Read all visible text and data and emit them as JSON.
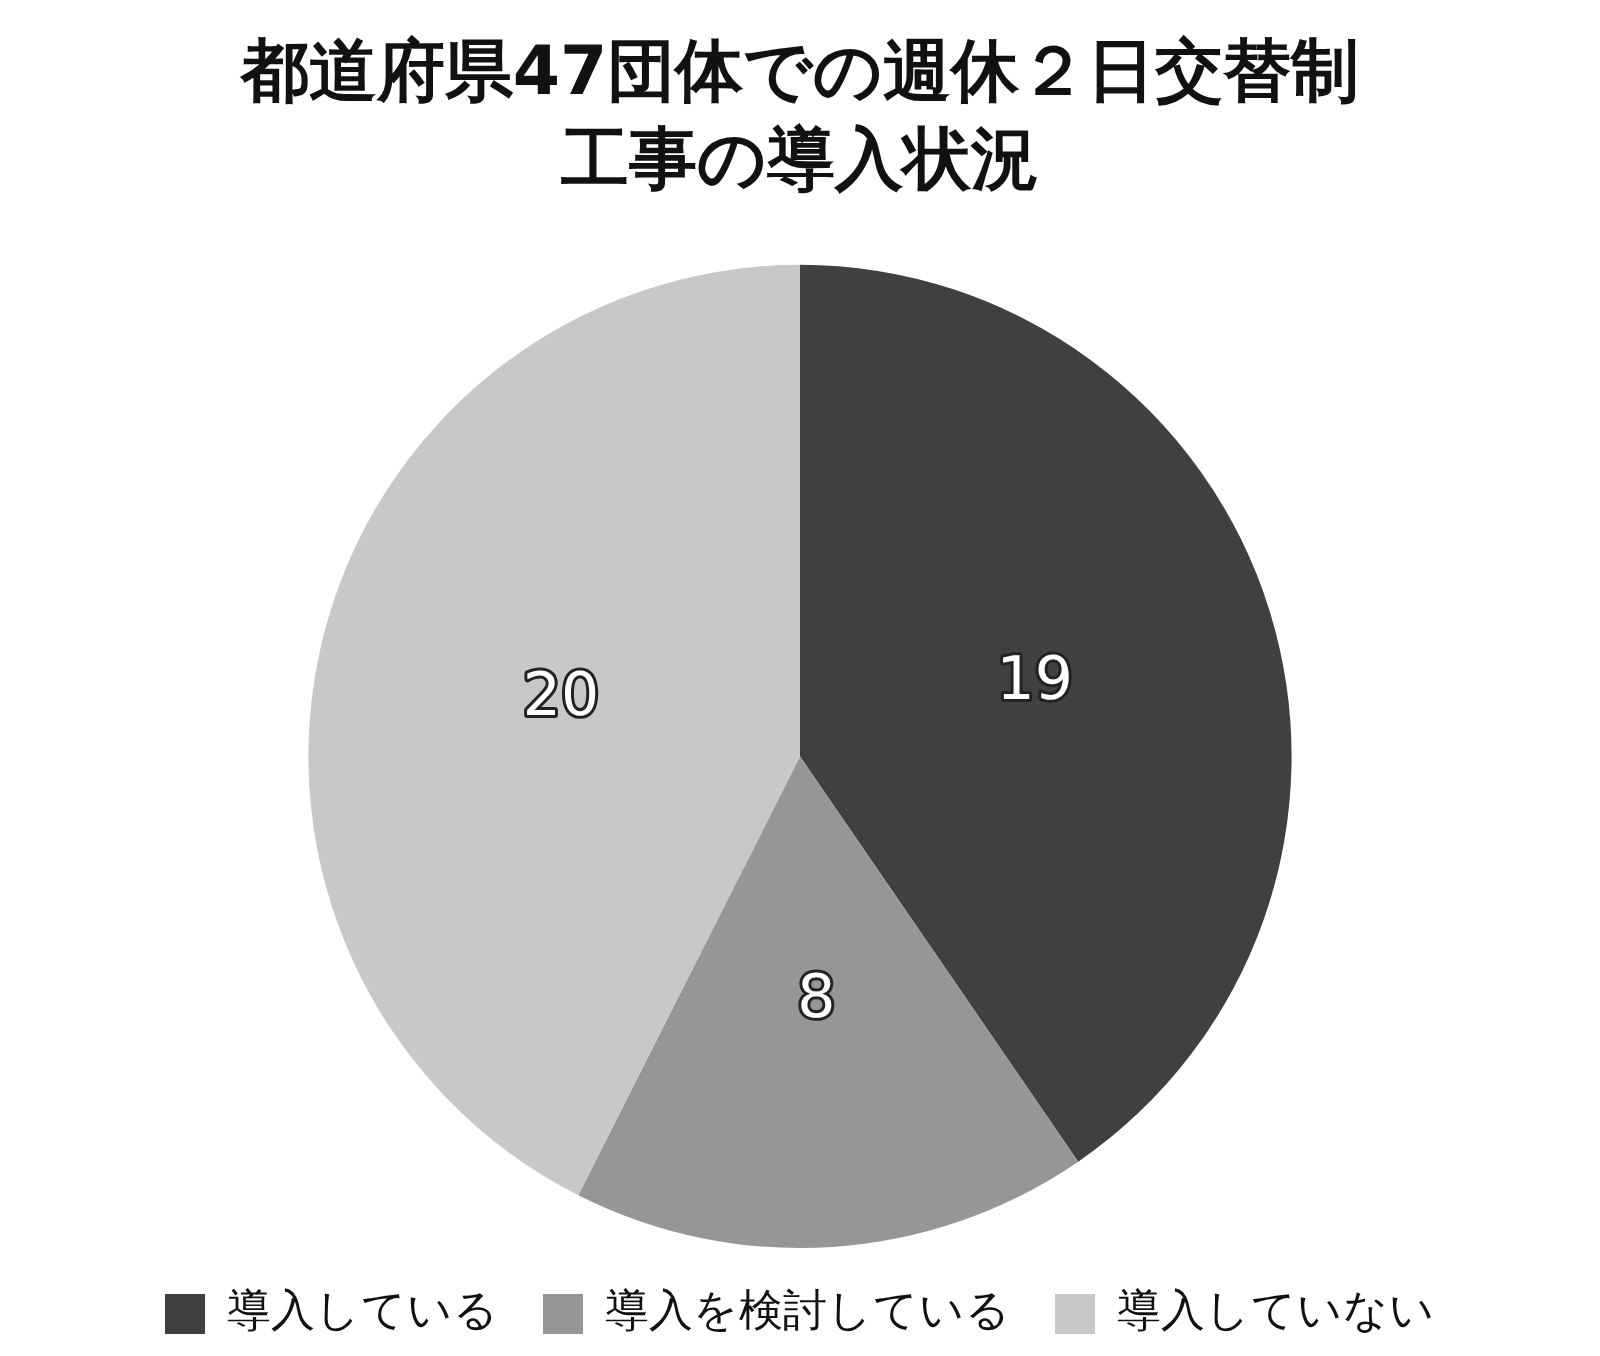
{
  "chart_data": {
    "type": "pie",
    "title": "都道府県47団体での週休２日交替制工事の導入状況",
    "categories": [
      "導入している",
      "導入を検討している",
      "導入していない"
    ],
    "values": [
      19,
      8,
      20
    ],
    "colors": [
      "#404040",
      "#969696",
      "#c8c8c8"
    ],
    "data_labels": true,
    "legend": "bottom"
  }
}
